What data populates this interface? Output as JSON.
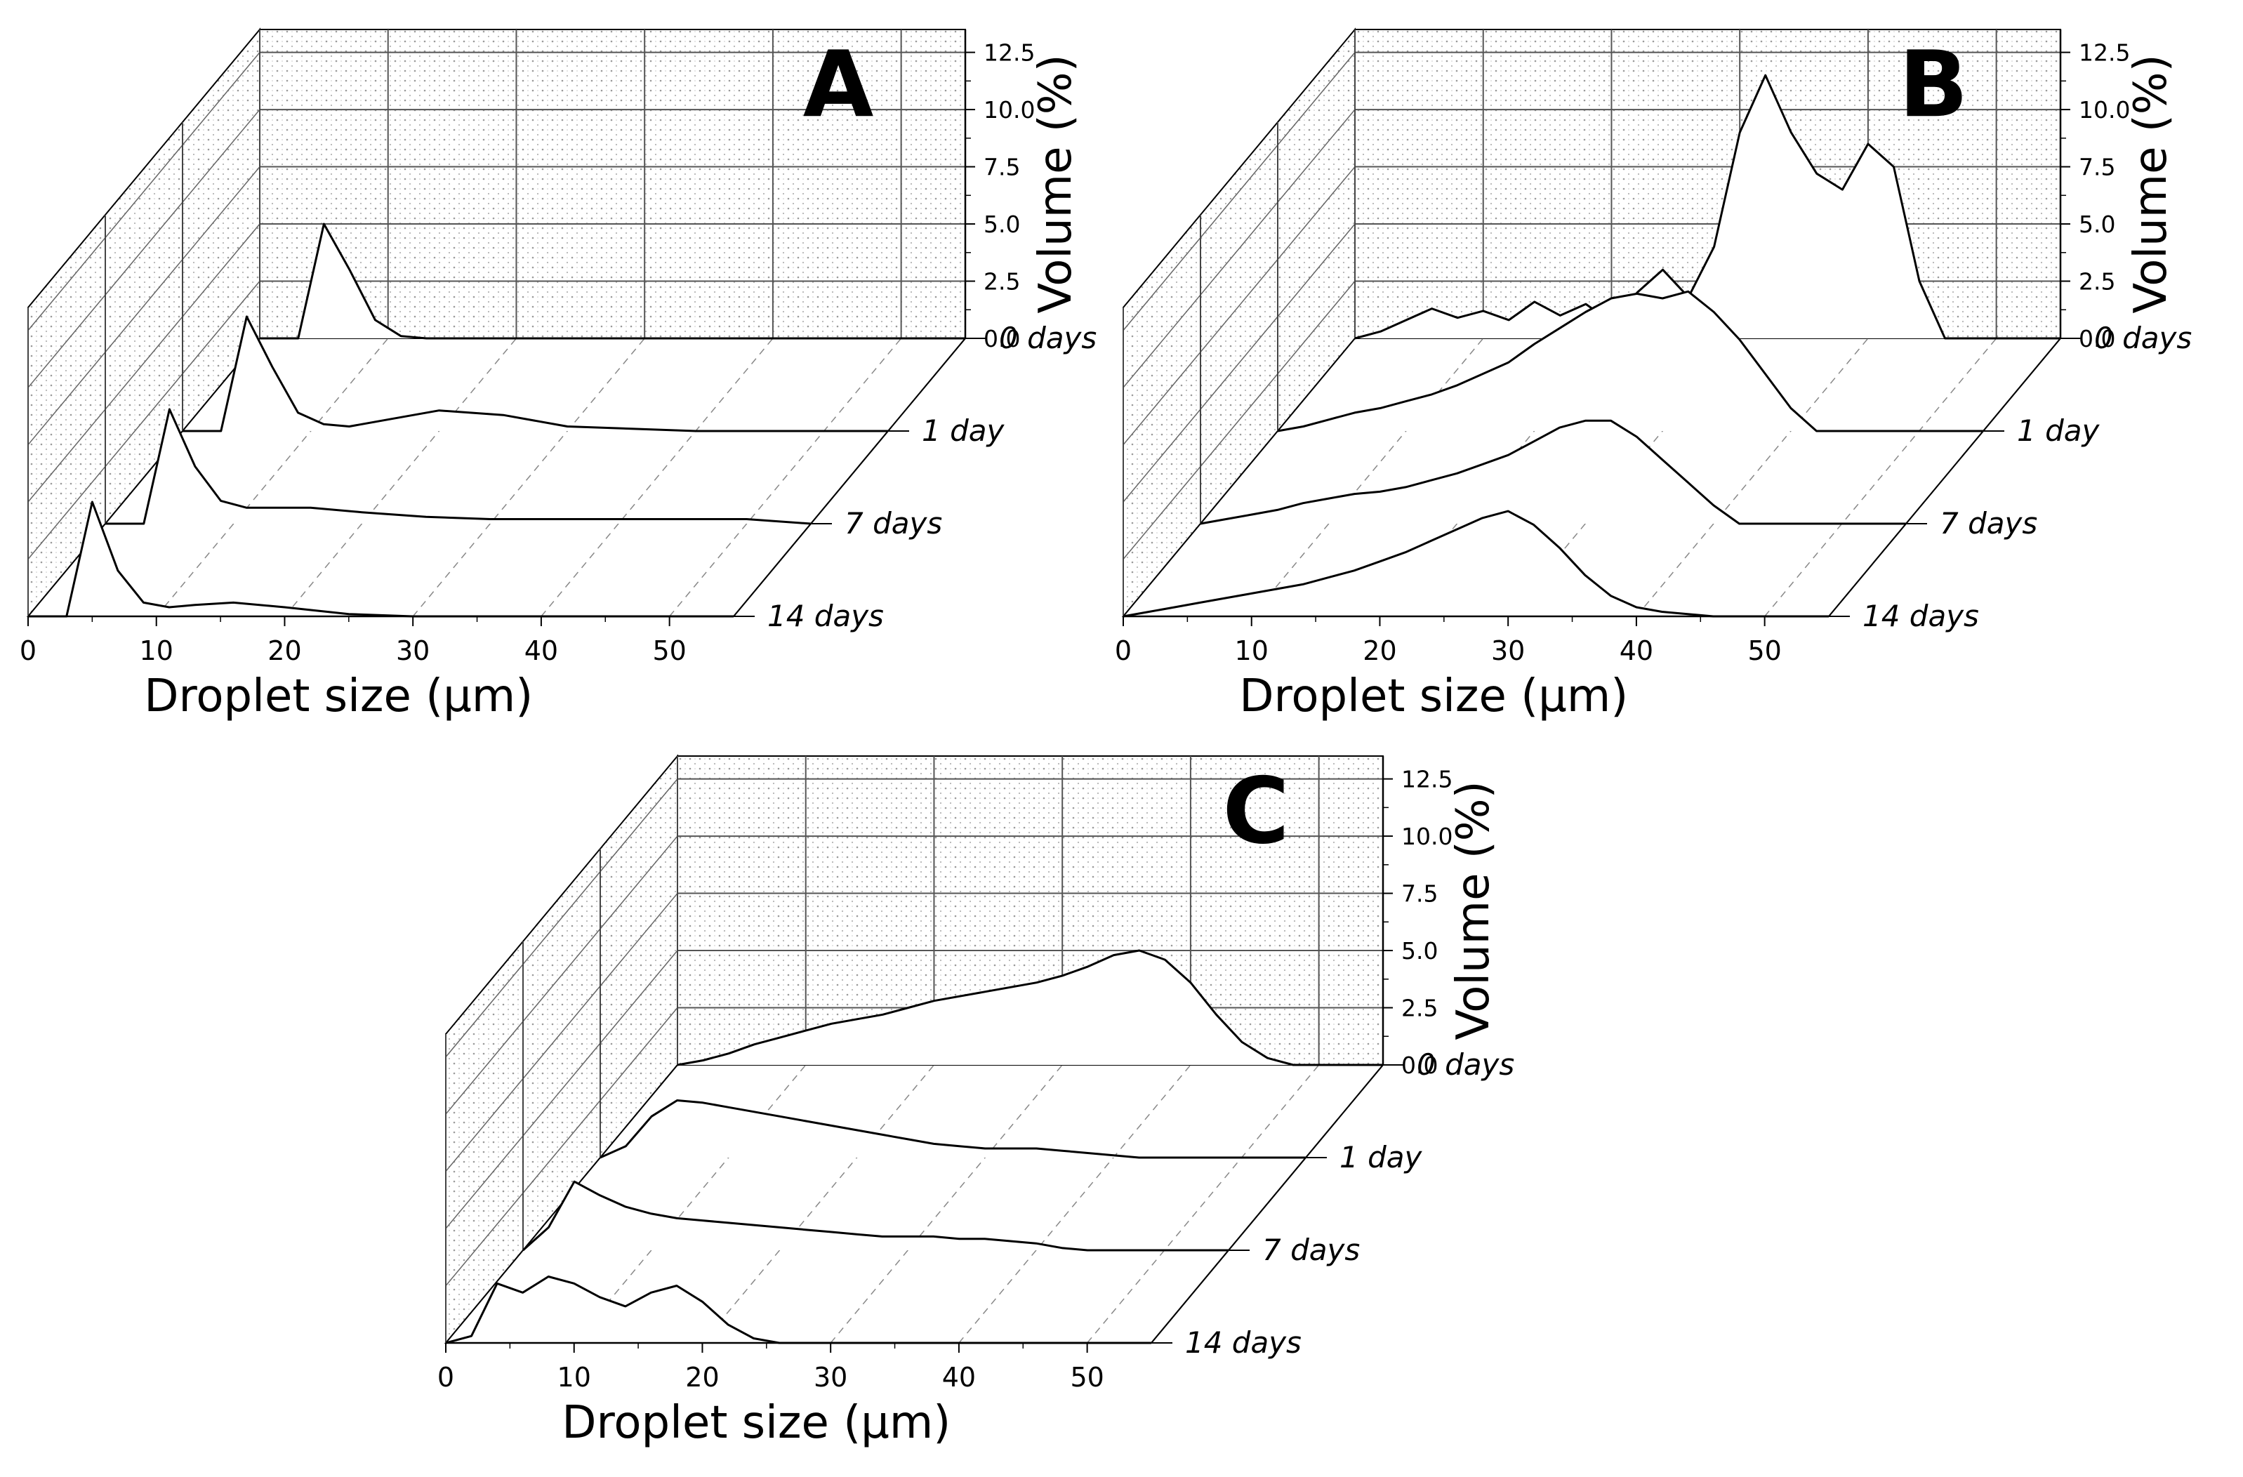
{
  "chart_data": [
    {
      "type": "area",
      "panel_label": "A",
      "xlabel": "Droplet size (μm)",
      "zlabel": "Volume (%)",
      "xlim": [
        0,
        55
      ],
      "zlim": [
        0,
        13.5
      ],
      "x_ticks": [
        "0",
        "10",
        "20",
        "30",
        "40",
        "50"
      ],
      "z_ticks": [
        "0.0",
        "2.5",
        "5.0",
        "7.5",
        "10.0",
        "12.5"
      ],
      "series": [
        {
          "name": "0 days",
          "x": [
            0,
            3,
            5,
            7,
            9,
            11,
            13,
            16,
            20,
            25,
            30,
            40,
            50,
            55
          ],
          "values": [
            0,
            0,
            5.0,
            3.0,
            0.8,
            0.1,
            0,
            0,
            0,
            0,
            0,
            0,
            0,
            0
          ]
        },
        {
          "name": "1 day",
          "x": [
            0,
            3,
            5,
            7,
            9,
            11,
            13,
            16,
            20,
            25,
            30,
            40,
            50,
            55
          ],
          "values": [
            0,
            0,
            5.0,
            2.8,
            0.8,
            0.3,
            0.2,
            0.5,
            0.9,
            0.7,
            0.2,
            0,
            0,
            0
          ]
        },
        {
          "name": "7 days",
          "x": [
            0,
            3,
            5,
            7,
            9,
            11,
            13,
            16,
            20,
            25,
            30,
            40,
            50,
            55
          ],
          "values": [
            0,
            0,
            5.0,
            2.5,
            1.0,
            0.7,
            0.7,
            0.7,
            0.5,
            0.3,
            0.2,
            0.2,
            0.2,
            0
          ]
        },
        {
          "name": "14 days",
          "x": [
            0,
            3,
            5,
            7,
            9,
            11,
            13,
            16,
            20,
            25,
            30,
            40,
            50,
            55
          ],
          "values": [
            0,
            0,
            5.0,
            2.0,
            0.6,
            0.4,
            0.5,
            0.6,
            0.4,
            0.1,
            0,
            0,
            0,
            0
          ]
        }
      ]
    },
    {
      "type": "area",
      "panel_label": "B",
      "xlabel": "Droplet size (μm)",
      "zlabel": "Volume (%)",
      "xlim": [
        0,
        55
      ],
      "zlim": [
        0,
        13.5
      ],
      "x_ticks": [
        "0",
        "10",
        "20",
        "30",
        "40",
        "50"
      ],
      "z_ticks": [
        "0.0",
        "2.5",
        "5.0",
        "7.5",
        "10.0",
        "12.5"
      ],
      "series": [
        {
          "name": "0 days",
          "x": [
            0,
            2,
            4,
            6,
            8,
            10,
            12,
            14,
            16,
            18,
            20,
            22,
            24,
            26,
            28,
            30,
            32,
            34,
            36,
            38,
            40,
            42,
            44,
            46,
            48,
            50,
            52,
            55
          ],
          "values": [
            0,
            0.3,
            0.8,
            1.3,
            0.9,
            1.2,
            0.8,
            1.6,
            1.0,
            1.5,
            0.7,
            2.0,
            3.0,
            1.8,
            4.0,
            9.0,
            11.5,
            9.0,
            7.2,
            6.5,
            8.5,
            7.5,
            2.5,
            0,
            0,
            0,
            0,
            0
          ]
        },
        {
          "name": "1 day",
          "x": [
            0,
            2,
            4,
            6,
            8,
            10,
            12,
            14,
            16,
            18,
            20,
            22,
            24,
            26,
            28,
            30,
            32,
            34,
            36,
            38,
            40,
            42,
            44,
            46,
            48,
            50,
            52,
            55
          ],
          "values": [
            0,
            0.2,
            0.5,
            0.8,
            1.0,
            1.3,
            1.6,
            2.0,
            2.5,
            3.0,
            3.8,
            4.5,
            5.2,
            5.8,
            6.0,
            5.8,
            6.1,
            5.2,
            4.0,
            2.5,
            1.0,
            0,
            0,
            0,
            0,
            0,
            0,
            0
          ]
        },
        {
          "name": "7 days",
          "x": [
            0,
            2,
            4,
            6,
            8,
            10,
            12,
            14,
            16,
            18,
            20,
            22,
            24,
            26,
            28,
            30,
            32,
            34,
            36,
            38,
            40,
            42,
            44,
            46,
            48,
            50,
            52,
            55
          ],
          "values": [
            0,
            0.2,
            0.4,
            0.6,
            0.9,
            1.1,
            1.3,
            1.4,
            1.6,
            1.9,
            2.2,
            2.6,
            3.0,
            3.6,
            4.2,
            4.5,
            4.5,
            3.8,
            2.8,
            1.8,
            0.8,
            0,
            0,
            0,
            0,
            0,
            0,
            0
          ]
        },
        {
          "name": "14 days",
          "x": [
            0,
            2,
            4,
            6,
            8,
            10,
            12,
            14,
            16,
            18,
            20,
            22,
            24,
            26,
            28,
            30,
            32,
            34,
            36,
            38,
            40,
            42,
            44,
            46,
            48,
            50,
            52,
            55
          ],
          "values": [
            0,
            0.2,
            0.4,
            0.6,
            0.8,
            1.0,
            1.2,
            1.4,
            1.7,
            2.0,
            2.4,
            2.8,
            3.3,
            3.8,
            4.3,
            4.6,
            4.0,
            3.0,
            1.8,
            0.9,
            0.4,
            0.2,
            0.1,
            0,
            0,
            0,
            0,
            0
          ]
        }
      ]
    },
    {
      "type": "area",
      "panel_label": "C",
      "xlabel": "Droplet size (μm)",
      "zlabel": "Volume (%)",
      "xlim": [
        0,
        55
      ],
      "zlim": [
        0,
        13.5
      ],
      "x_ticks": [
        "0",
        "10",
        "20",
        "30",
        "40",
        "50"
      ],
      "z_ticks": [
        "0.0",
        "2.5",
        "5.0",
        "7.5",
        "10.0",
        "12.5"
      ],
      "series": [
        {
          "name": "0 days",
          "x": [
            0,
            2,
            4,
            6,
            8,
            10,
            12,
            14,
            16,
            18,
            20,
            22,
            24,
            26,
            28,
            30,
            32,
            34,
            36,
            38,
            40,
            42,
            44,
            46,
            48,
            50,
            52,
            55
          ],
          "values": [
            0,
            0.2,
            0.5,
            0.9,
            1.2,
            1.5,
            1.8,
            2.0,
            2.2,
            2.5,
            2.8,
            3.0,
            3.2,
            3.4,
            3.6,
            3.9,
            4.3,
            4.8,
            5.0,
            4.6,
            3.6,
            2.2,
            1.0,
            0.3,
            0,
            0,
            0,
            0
          ]
        },
        {
          "name": "1 day",
          "x": [
            0,
            2,
            4,
            6,
            8,
            10,
            12,
            14,
            16,
            18,
            20,
            22,
            24,
            26,
            28,
            30,
            32,
            34,
            36,
            38,
            40,
            42,
            44,
            46,
            48,
            50,
            52,
            55
          ],
          "values": [
            0,
            0.5,
            1.8,
            2.5,
            2.4,
            2.2,
            2.0,
            1.8,
            1.6,
            1.4,
            1.2,
            1.0,
            0.8,
            0.6,
            0.5,
            0.4,
            0.4,
            0.4,
            0.3,
            0.2,
            0.1,
            0,
            0,
            0,
            0,
            0,
            0,
            0
          ]
        },
        {
          "name": "7 days",
          "x": [
            0,
            2,
            4,
            6,
            8,
            10,
            12,
            14,
            16,
            18,
            20,
            22,
            24,
            26,
            28,
            30,
            32,
            34,
            36,
            38,
            40,
            42,
            44,
            46,
            48,
            50,
            52,
            55
          ],
          "values": [
            0,
            1.0,
            3.0,
            2.4,
            1.9,
            1.6,
            1.4,
            1.3,
            1.2,
            1.1,
            1.0,
            0.9,
            0.8,
            0.7,
            0.6,
            0.6,
            0.6,
            0.5,
            0.5,
            0.4,
            0.3,
            0.1,
            0,
            0,
            0,
            0,
            0,
            0
          ]
        },
        {
          "name": "14 days",
          "x": [
            0,
            2,
            4,
            6,
            8,
            10,
            12,
            14,
            16,
            18,
            20,
            22,
            24,
            26,
            28,
            30,
            32,
            34,
            36,
            38,
            40,
            42,
            44,
            46,
            48,
            50,
            52,
            55
          ],
          "values": [
            0,
            0.3,
            2.6,
            2.2,
            2.9,
            2.6,
            2.0,
            1.6,
            2.2,
            2.5,
            1.8,
            0.8,
            0.2,
            0,
            0,
            0,
            0,
            0,
            0,
            0,
            0,
            0,
            0,
            0,
            0,
            0,
            0,
            0
          ]
        }
      ]
    }
  ]
}
